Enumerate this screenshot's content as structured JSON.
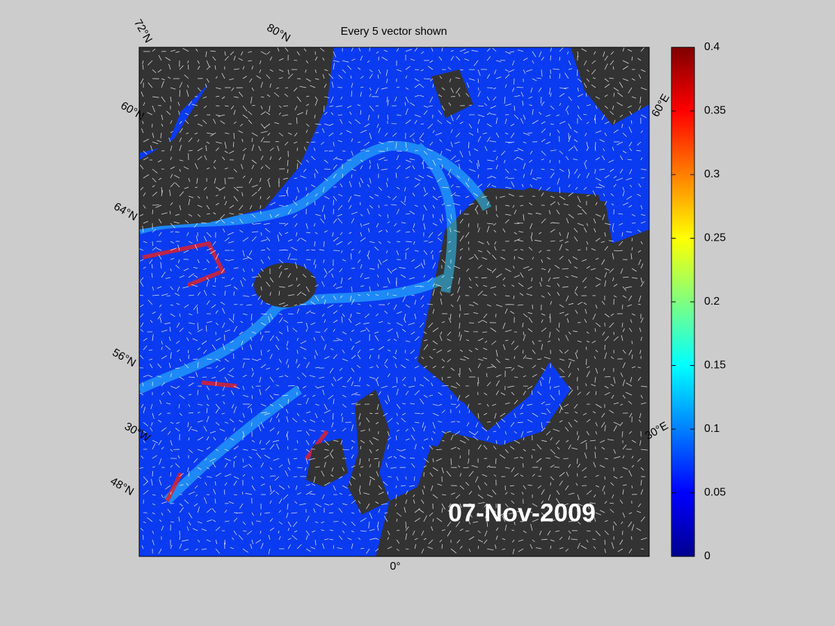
{
  "title": "Every 5 vector shown",
  "date_label": "07-Nov-2009",
  "graticule_labels": [
    "72°N",
    "80°N",
    "60°N",
    "64°N",
    "56°N",
    "30°W",
    "48°N",
    "0°",
    "30°E",
    "60°E"
  ],
  "colorbar": {
    "range": [
      0,
      0.4
    ],
    "ticks": [
      0,
      0.05,
      0.1,
      0.15,
      0.2,
      0.25,
      0.3,
      0.35,
      0.4
    ]
  }
}
